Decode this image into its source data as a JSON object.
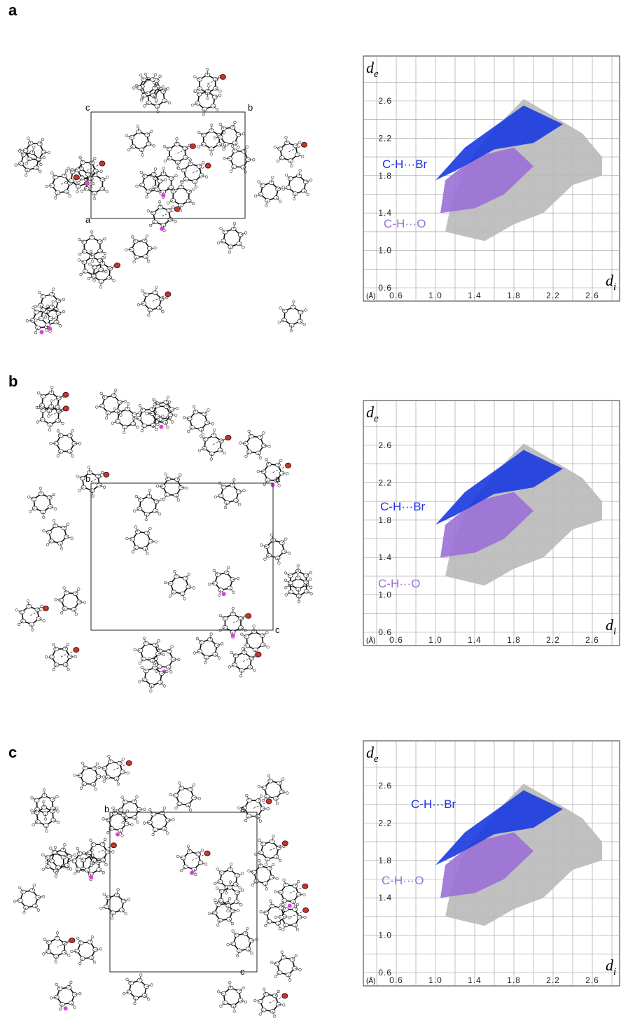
{
  "panels": [
    {
      "label": "a",
      "cell_axes": [
        "c",
        "b",
        "a"
      ],
      "plot": {
        "y_label": "d",
        "y_sub": "e",
        "x_label": "d",
        "x_sub": "i",
        "unit": "(Å)",
        "y_ticks": [
          "2.6",
          "2.2",
          "1.8",
          "1.4",
          "1.0",
          "0.6"
        ],
        "x_ticks": [
          "0.6",
          "1.0",
          "1.4",
          "1.8",
          "2.2",
          "2.6"
        ],
        "annotations": [
          "C-H···Br",
          "C-H···O"
        ]
      }
    },
    {
      "label": "b",
      "cell_axes": [
        "b",
        "a",
        "c"
      ],
      "plot": {
        "y_label": "d",
        "y_sub": "e",
        "x_label": "d",
        "x_sub": "i",
        "unit": "(Å)",
        "y_ticks": [
          "2.6",
          "2.2",
          "1.8",
          "1.4",
          "1.0",
          "0.6"
        ],
        "x_ticks": [
          "0.6",
          "1.0",
          "1.4",
          "1.8",
          "2.2",
          "2.6"
        ],
        "annotations": [
          "C-H···Br",
          "C-H···O"
        ]
      }
    },
    {
      "label": "c",
      "cell_axes": [
        "b",
        "a",
        "c"
      ],
      "plot": {
        "y_label": "d",
        "y_sub": "e",
        "x_label": "d",
        "x_sub": "i",
        "unit": "(Å)",
        "y_ticks": [
          "2.6",
          "2.2",
          "1.8",
          "1.4",
          "1.0",
          "0.6"
        ],
        "x_ticks": [
          "0.6",
          "1.0",
          "1.4",
          "1.8",
          "2.2",
          "2.6"
        ],
        "annotations": [
          "C-H···Br",
          "C-H···O"
        ]
      }
    }
  ]
}
